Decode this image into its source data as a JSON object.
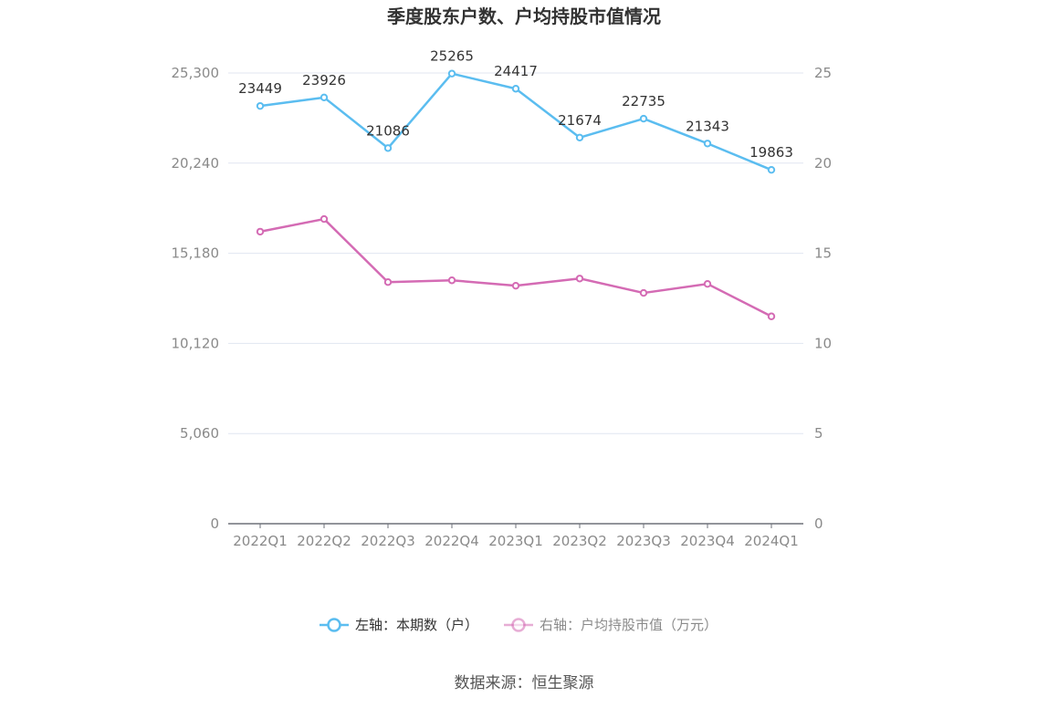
{
  "chart_data": {
    "type": "line",
    "title": "季度股东户数、户均持股市值情况",
    "categories": [
      "2022Q1",
      "2022Q2",
      "2022Q3",
      "2022Q4",
      "2023Q1",
      "2023Q2",
      "2023Q3",
      "2023Q4",
      "2024Q1"
    ],
    "left_axis": {
      "ticks": [
        "0",
        "5,060",
        "10,120",
        "15,180",
        "20,240",
        "25,300"
      ],
      "ylim": [
        0,
        25300
      ]
    },
    "right_axis": {
      "ticks": [
        "0",
        "5",
        "10",
        "15",
        "20",
        "25"
      ],
      "ylim": [
        0,
        25
      ]
    },
    "series": [
      {
        "name": "左轴：本期数（户）",
        "axis": "left",
        "color": "#5bbdf0",
        "values": [
          23449,
          23926,
          21086,
          25265,
          24417,
          21674,
          22735,
          21343,
          19863
        ],
        "labels": [
          "23449",
          "23926",
          "21086",
          "25265",
          "24417",
          "21674",
          "22735",
          "21343",
          "19863"
        ]
      },
      {
        "name": "右轴：户均持股市值（万元）",
        "axis": "right",
        "color": "#d46bb4",
        "values": [
          16.2,
          16.9,
          13.4,
          13.5,
          13.2,
          13.6,
          12.8,
          13.3,
          11.5
        ]
      }
    ],
    "grid": true,
    "legend": "bottom-center"
  },
  "source_label": "数据来源：恒生聚源"
}
